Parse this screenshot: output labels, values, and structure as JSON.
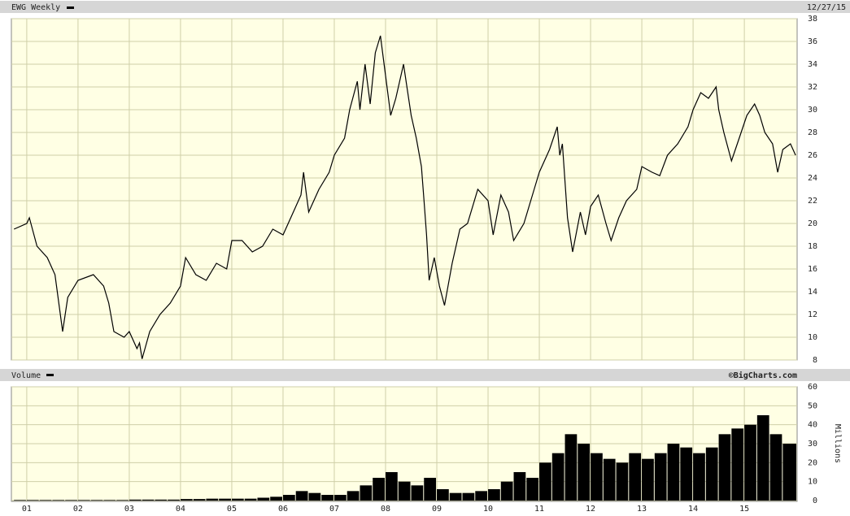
{
  "chart_data": [
    {
      "type": "line",
      "title": "EWG Weekly",
      "date": "12/27/15",
      "color": "#000000",
      "x": [
        2000.75,
        2001.0,
        2001.05,
        2001.2,
        2001.4,
        2001.55,
        2001.7,
        2001.8,
        2002.0,
        2002.3,
        2002.5,
        2002.6,
        2002.7,
        2002.9,
        2003.0,
        2003.15,
        2003.2,
        2003.25,
        2003.4,
        2003.6,
        2003.8,
        2004.0,
        2004.1,
        2004.3,
        2004.5,
        2004.7,
        2004.9,
        2005.0,
        2005.2,
        2005.4,
        2005.6,
        2005.8,
        2006.0,
        2006.2,
        2006.35,
        2006.4,
        2006.5,
        2006.7,
        2006.9,
        2007.0,
        2007.2,
        2007.3,
        2007.45,
        2007.5,
        2007.6,
        2007.7,
        2007.8,
        2007.9,
        2008.0,
        2008.1,
        2008.2,
        2008.35,
        2008.5,
        2008.6,
        2008.7,
        2008.75,
        2008.8,
        2008.85,
        2008.95,
        2009.05,
        2009.15,
        2009.3,
        2009.45,
        2009.6,
        2009.8,
        2010.0,
        2010.1,
        2010.25,
        2010.4,
        2010.5,
        2010.7,
        2010.9,
        2011.0,
        2011.2,
        2011.35,
        2011.4,
        2011.45,
        2011.55,
        2011.65,
        2011.8,
        2011.9,
        2012.0,
        2012.15,
        2012.3,
        2012.4,
        2012.55,
        2012.7,
        2012.9,
        2013.0,
        2013.2,
        2013.35,
        2013.5,
        2013.7,
        2013.9,
        2014.0,
        2014.15,
        2014.3,
        2014.45,
        2014.5,
        2014.6,
        2014.75,
        2014.9,
        2015.05,
        2015.2,
        2015.3,
        2015.4,
        2015.55,
        2015.65,
        2015.75,
        2015.9,
        2016.0
      ],
      "values": [
        19.5,
        20,
        20.5,
        18,
        17,
        15.5,
        10.5,
        13.5,
        15,
        15.5,
        14.5,
        13,
        10.5,
        10,
        10.5,
        9,
        9.5,
        8.1,
        10.5,
        12,
        13,
        14.5,
        17,
        15.5,
        15,
        16.5,
        16,
        18.5,
        18.5,
        17.5,
        18,
        19.5,
        19,
        21,
        22.5,
        24.5,
        21,
        23,
        24.5,
        26,
        27.5,
        30,
        32.5,
        30,
        34,
        30.5,
        35,
        36.5,
        33,
        29.5,
        31,
        34,
        29.5,
        27.5,
        25,
        22,
        19,
        15,
        17,
        14.5,
        12.8,
        16.5,
        19.5,
        20,
        23,
        22,
        19,
        22.5,
        21,
        18.5,
        20,
        23,
        24.5,
        26.5,
        28.5,
        26,
        27,
        20.5,
        17.5,
        21,
        19,
        21.5,
        22.5,
        20,
        18.5,
        20.5,
        22,
        23,
        25,
        24.5,
        24.2,
        26,
        27,
        28.5,
        30,
        31.5,
        31,
        32,
        30,
        28,
        25.5,
        27.5,
        29.5,
        30.5,
        29.5,
        28,
        27,
        24.5,
        26.5,
        27,
        26
      ],
      "xlim": [
        2000.7,
        2016.03
      ],
      "ylim": [
        8,
        38
      ],
      "yticks": [
        8,
        10,
        12,
        14,
        16,
        18,
        20,
        22,
        24,
        26,
        28,
        30,
        32,
        34,
        36,
        38
      ]
    },
    {
      "type": "bar",
      "title": "Volume",
      "credit": "©BigCharts.com",
      "y_label": "Millions",
      "color": "#000000",
      "x": [
        2000.75,
        2001.0,
        2001.25,
        2001.5,
        2001.75,
        2002.0,
        2002.25,
        2002.5,
        2002.75,
        2003.0,
        2003.25,
        2003.5,
        2003.75,
        2004.0,
        2004.25,
        2004.5,
        2004.75,
        2005.0,
        2005.25,
        2005.5,
        2005.75,
        2006.0,
        2006.25,
        2006.5,
        2006.75,
        2007.0,
        2007.25,
        2007.5,
        2007.75,
        2008.0,
        2008.25,
        2008.5,
        2008.75,
        2009.0,
        2009.25,
        2009.5,
        2009.75,
        2010.0,
        2010.25,
        2010.5,
        2010.75,
        2011.0,
        2011.25,
        2011.5,
        2011.75,
        2012.0,
        2012.25,
        2012.5,
        2012.75,
        2013.0,
        2013.25,
        2013.5,
        2013.75,
        2014.0,
        2014.25,
        2014.5,
        2014.75,
        2015.0,
        2015.25,
        2015.5,
        2015.75
      ],
      "values": [
        0.3,
        0.3,
        0.3,
        0.3,
        0.3,
        0.3,
        0.3,
        0.3,
        0.3,
        0.5,
        0.5,
        0.5,
        0.5,
        0.8,
        0.8,
        1,
        1,
        1,
        1,
        1.5,
        2,
        3,
        5,
        4,
        3,
        3,
        5,
        8,
        12,
        15,
        10,
        8,
        12,
        6,
        4,
        4,
        5,
        6,
        10,
        15,
        12,
        20,
        25,
        35,
        30,
        25,
        22,
        20,
        25,
        22,
        25,
        30,
        28,
        25,
        28,
        35,
        38,
        40,
        45,
        35,
        30
      ],
      "xlim": [
        2000.7,
        2016.03
      ],
      "ylim": [
        0,
        60
      ],
      "yticks": [
        0,
        10,
        20,
        30,
        40,
        50,
        60
      ],
      "xticks": [
        {
          "value": 2001,
          "label": "01"
        },
        {
          "value": 2002,
          "label": "02"
        },
        {
          "value": 2003,
          "label": "03"
        },
        {
          "value": 2004,
          "label": "04"
        },
        {
          "value": 2005,
          "label": "05"
        },
        {
          "value": 2006,
          "label": "06"
        },
        {
          "value": 2007,
          "label": "07"
        },
        {
          "value": 2008,
          "label": "08"
        },
        {
          "value": 2009,
          "label": "09"
        },
        {
          "value": 2010,
          "label": "10"
        },
        {
          "value": 2011,
          "label": "11"
        },
        {
          "value": 2012,
          "label": "12"
        },
        {
          "value": 2013,
          "label": "13"
        },
        {
          "value": 2014,
          "label": "14"
        },
        {
          "value": 2015,
          "label": "15"
        }
      ]
    }
  ]
}
